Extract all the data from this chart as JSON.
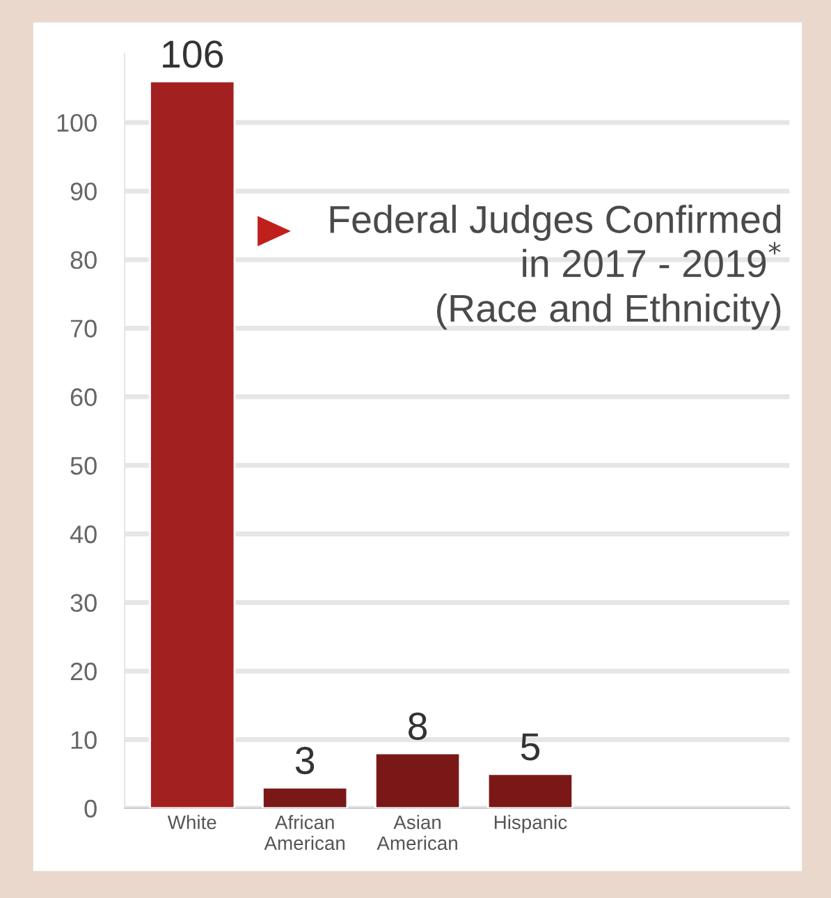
{
  "chart_data": {
    "type": "bar",
    "title": "Federal Judges Confirmed\nin 2017 - 2019$^{*}$\n(Race and Ethnicity)",
    "categories": [
      "White",
      "African\nAmerican",
      "Asian\nAmerican",
      "Hispanic"
    ],
    "values": [
      106,
      3,
      8,
      5
    ],
    "colors": [
      "#a32020",
      "#7a1818",
      "#7a1818",
      "#7a1818"
    ],
    "data_labels": true,
    "ylim": [
      0,
      110
    ],
    "yticks": [
      0,
      10,
      20,
      30,
      40,
      50,
      60,
      70,
      80,
      90,
      100
    ],
    "grid": "y"
  }
}
